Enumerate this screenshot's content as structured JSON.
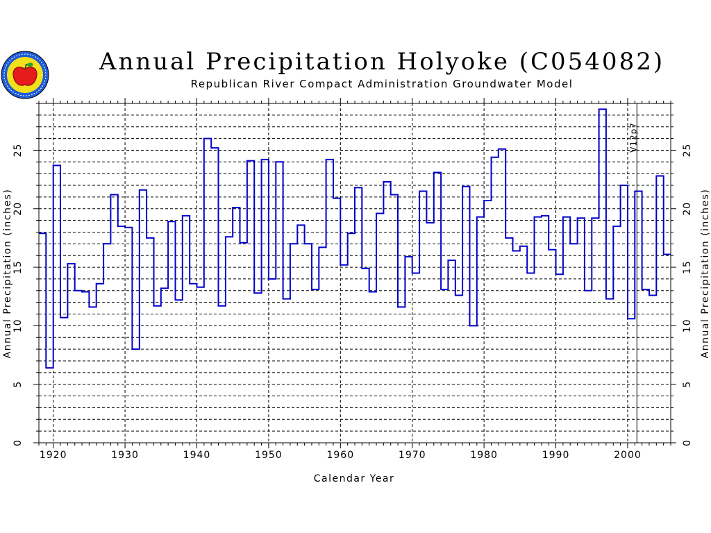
{
  "header": {
    "title": "Annual Precipitation Holyoke (C054082)",
    "subtitle": "Republican River Compact Administration Groundwater Model"
  },
  "logo": {
    "icon": "rrca-apple-seal-icon",
    "colors": [
      "#1e5bd8",
      "#f2e01b",
      "#e51c1c",
      "#2ca02c"
    ]
  },
  "chart_data": {
    "type": "line",
    "style": "step",
    "title": "Annual Precipitation Holyoke (C054082)",
    "subtitle": "Republican River Compact Administration Groundwater Model",
    "xlabel": "Calendar Year",
    "ylabel": "Annual Precipitation (inches)",
    "ylabel_right": "Annual Precipitation (inches)",
    "xlim": [
      1918,
      2006
    ],
    "ylim": [
      0,
      29
    ],
    "x_ticks": [
      1920,
      1930,
      1940,
      1950,
      1960,
      1970,
      1980,
      1990,
      2000
    ],
    "y_ticks": [
      0,
      5,
      10,
      15,
      20,
      25
    ],
    "grid": true,
    "line_color": "#0000cc",
    "annotations": [
      {
        "label": "V12p7",
        "x": 2001
      }
    ],
    "series": [
      {
        "x": [
          1918,
          1919,
          1920,
          1921,
          1922,
          1923,
          1924,
          1925,
          1926,
          1927,
          1928,
          1929,
          1930,
          1931,
          1932,
          1933,
          1934,
          1935,
          1936,
          1937,
          1938,
          1939,
          1940,
          1941,
          1942,
          1943,
          1944,
          1945,
          1946,
          1947,
          1948,
          1949,
          1950,
          1951,
          1952,
          1953,
          1954,
          1955,
          1956,
          1957,
          1958,
          1959,
          1960,
          1961,
          1962,
          1963,
          1964,
          1965,
          1966,
          1967,
          1968,
          1969,
          1970,
          1971,
          1972,
          1973,
          1974,
          1975,
          1976,
          1977,
          1978,
          1979,
          1980,
          1981,
          1982,
          1983,
          1984,
          1985,
          1986,
          1987,
          1988,
          1989,
          1990,
          1991,
          1992,
          1993,
          1994,
          1995,
          1996,
          1997,
          1998,
          1999,
          2000,
          2001,
          2002,
          2003,
          2004,
          2005
        ],
        "values": [
          17.9,
          6.4,
          23.7,
          10.7,
          15.3,
          13.0,
          12.9,
          11.6,
          13.6,
          17.0,
          21.2,
          18.5,
          18.4,
          8.0,
          21.6,
          17.5,
          11.7,
          13.2,
          18.9,
          12.2,
          19.4,
          13.6,
          13.3,
          26.0,
          25.2,
          11.7,
          17.6,
          20.1,
          17.1,
          24.1,
          12.8,
          24.2,
          14.0,
          24.0,
          12.3,
          17.0,
          18.6,
          17.0,
          13.1,
          16.7,
          24.2,
          20.9,
          15.2,
          17.9,
          21.8,
          14.9,
          12.9,
          19.6,
          22.3,
          21.2,
          11.6,
          15.9,
          14.5,
          21.5,
          18.8,
          23.1,
          13.1,
          15.6,
          12.6,
          21.9,
          10.0,
          19.3,
          20.7,
          24.4,
          25.1,
          17.5,
          16.4,
          16.8,
          14.5,
          19.3,
          19.4,
          16.5,
          14.4,
          19.3,
          17.0,
          19.2,
          13.0,
          19.2,
          28.5,
          12.3,
          18.5,
          22.0,
          10.6,
          21.5,
          13.1,
          12.6,
          22.8,
          16.1
        ]
      }
    ]
  }
}
